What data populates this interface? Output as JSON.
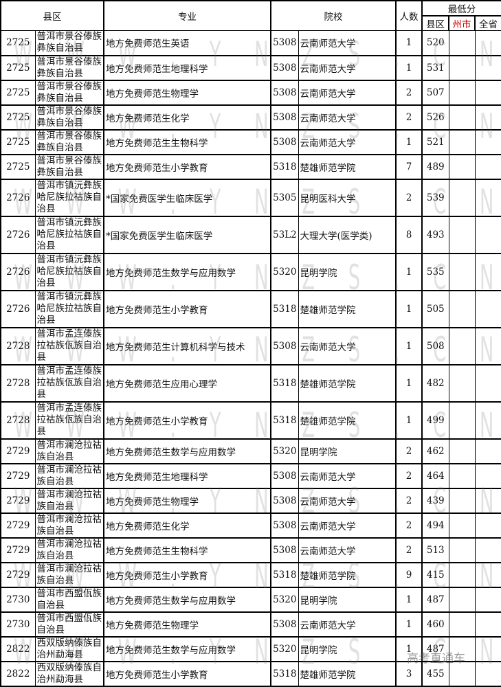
{
  "header": {
    "county": "县区",
    "major": "专业",
    "school": "院校",
    "count": "人数",
    "min_score": "最低分",
    "score_county": "县区",
    "score_pref": "州市",
    "score_prov": "全省"
  },
  "rows": [
    {
      "code": "2725",
      "county": "普洱市景谷傣族彝族自治县",
      "major": "地方免费师范生英语",
      "scode": "5308",
      "school": "云南师范大学",
      "num": "1",
      "score": "520",
      "lines": 2
    },
    {
      "code": "2725",
      "county": "普洱市景谷傣族彝族自治县",
      "major": "地方免费师范生地理科学",
      "scode": "5308",
      "school": "云南师范大学",
      "num": "1",
      "score": "531",
      "lines": 2
    },
    {
      "code": "2725",
      "county": "普洱市景谷傣族彝族自治县",
      "major": "地方免费师范生物理学",
      "scode": "5308",
      "school": "云南师范大学",
      "num": "2",
      "score": "507",
      "lines": 2
    },
    {
      "code": "2725",
      "county": "普洱市景谷傣族彝族自治县",
      "major": "地方免费师范生化学",
      "scode": "5308",
      "school": "云南师范大学",
      "num": "2",
      "score": "526",
      "lines": 2
    },
    {
      "code": "2725",
      "county": "普洱市景谷傣族彝族自治县",
      "major": "地方免费师范生生物科学",
      "scode": "5308",
      "school": "云南师范大学",
      "num": "1",
      "score": "521",
      "lines": 2
    },
    {
      "code": "2725",
      "county": "普洱市景谷傣族彝族自治县",
      "major": "地方免费师范生小学教育",
      "scode": "5318",
      "school": "楚雄师范学院",
      "num": "7",
      "score": "489",
      "lines": 2
    },
    {
      "code": "2726",
      "county": "普洱市镇沅彝族哈尼族拉祜族自治县",
      "major": "*国家免费医学生临床医学",
      "scode": "5305",
      "school": "昆明医科大学",
      "num": "2",
      "score": "539",
      "lines": 3
    },
    {
      "code": "2726",
      "county": "普洱市镇沅彝族哈尼族拉祜族自治县",
      "major": "*国家免费医学生临床医学",
      "scode": "53L2",
      "school": "大理大学(医学类)",
      "num": "8",
      "score": "493",
      "lines": 3
    },
    {
      "code": "2726",
      "county": "普洱市镇沅彝族哈尼族拉祜族自治县",
      "major": "地方免费师范生数学与应用数学",
      "scode": "5320",
      "school": "昆明学院",
      "num": "1",
      "score": "535",
      "lines": 3
    },
    {
      "code": "2726",
      "county": "普洱市镇沅彝族哈尼族拉祜族自治县",
      "major": "地方免费师范生小学教育",
      "scode": "5318",
      "school": "楚雄师范学院",
      "num": "1",
      "score": "505",
      "lines": 3
    },
    {
      "code": "2728",
      "county": "普洱市孟连傣族拉祜族佤族自治县",
      "major": "地方免费师范生计算机科学与技术",
      "scode": "5308",
      "school": "云南师范大学",
      "num": "1",
      "score": "508",
      "lines": 3
    },
    {
      "code": "2728",
      "county": "普洱市孟连傣族拉祜族佤族自治县",
      "major": "地方免费师范生应用心理学",
      "scode": "5318",
      "school": "楚雄师范学院",
      "num": "1",
      "score": "482",
      "lines": 3
    },
    {
      "code": "2728",
      "county": "普洱市孟连傣族拉祜族佤族自治县",
      "major": "地方免费师范生小学教育",
      "scode": "5318",
      "school": "楚雄师范学院",
      "num": "1",
      "score": "499",
      "lines": 3
    },
    {
      "code": "2729",
      "county": "普洱市澜沧拉祜族自治县",
      "major": "地方免费师范生数学与应用数学",
      "scode": "5320",
      "school": "昆明学院",
      "num": "2",
      "score": "462",
      "lines": 2
    },
    {
      "code": "2729",
      "county": "普洱市澜沧拉祜族自治县",
      "major": "地方免费师范生地理科学",
      "scode": "5308",
      "school": "云南师范大学",
      "num": "2",
      "score": "464",
      "lines": 2
    },
    {
      "code": "2729",
      "county": "普洱市澜沧拉祜族自治县",
      "major": "地方免费师范生物理学",
      "scode": "5308",
      "school": "云南师范大学",
      "num": "2",
      "score": "439",
      "lines": 2
    },
    {
      "code": "2729",
      "county": "普洱市澜沧拉祜族自治县",
      "major": "地方免费师范生化学",
      "scode": "5308",
      "school": "云南师范大学",
      "num": "2",
      "score": "494",
      "lines": 2
    },
    {
      "code": "2729",
      "county": "普洱市澜沧拉祜族自治县",
      "major": "地方免费师范生生物科学",
      "scode": "5308",
      "school": "云南师范大学",
      "num": "2",
      "score": "513",
      "lines": 2
    },
    {
      "code": "2729",
      "county": "普洱市澜沧拉祜族自治县",
      "major": "地方免费师范生小学教育",
      "scode": "5318",
      "school": "楚雄师范学院",
      "num": "9",
      "score": "415",
      "lines": 2
    },
    {
      "code": "2730",
      "county": "普洱市西盟佤族自治县",
      "major": "地方免费师范生数学与应用数学",
      "scode": "5320",
      "school": "昆明学院",
      "num": "1",
      "score": "487",
      "lines": 2
    },
    {
      "code": "2730",
      "county": "普洱市西盟佤族自治县",
      "major": "地方免费师范生物理学",
      "scode": "5308",
      "school": "云南师范大学",
      "num": "1",
      "score": "460",
      "lines": 2
    },
    {
      "code": "2822",
      "county": "西双版纳傣族自治州勐海县",
      "major": "地方免费师范生数学与应用数学",
      "scode": "5320",
      "school": "昆明学院",
      "num": "1",
      "score": "487",
      "lines": 2
    },
    {
      "code": "2822",
      "county": "西双版纳傣族自治州勐海县",
      "major": "地方免费师范生小学教育",
      "scode": "5318",
      "school": "楚雄师范学院",
      "num": "3",
      "score": "455",
      "lines": 2
    }
  ],
  "watermark": [
    "W",
    "W",
    "W",
    ".",
    "Y",
    "N",
    "Z",
    "S",
    ".",
    "C",
    "N"
  ],
  "logo": "高考直通车"
}
